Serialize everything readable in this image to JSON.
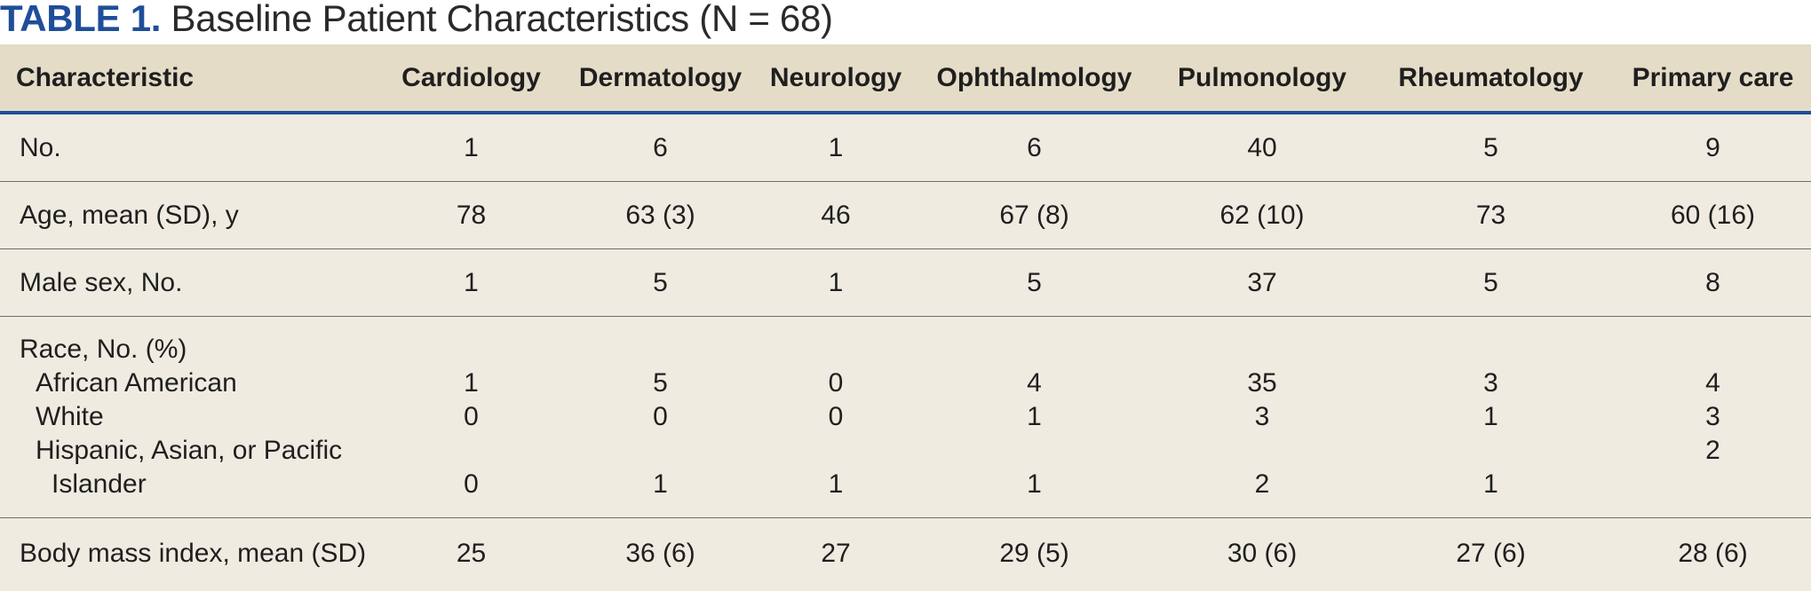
{
  "title": {
    "label": "TABLE 1.",
    "text": " Baseline Patient Characteristics (N = 68)"
  },
  "columns": [
    "Characteristic",
    "Cardiology",
    "Dermatology",
    "Neurology",
    "Ophthalmology",
    "Pulmonology",
    "Rheumatology",
    "Primary care"
  ],
  "rows": {
    "no": {
      "label": "No.",
      "values": [
        "1",
        "6",
        "1",
        "6",
        "40",
        "5",
        "9"
      ]
    },
    "age": {
      "label": "Age, mean (SD), y",
      "values": [
        "78",
        "63 (3)",
        "46",
        "67 (8)",
        "62 (10)",
        "73",
        "60 (16)"
      ]
    },
    "male": {
      "label": "Male sex, No.",
      "values": [
        "1",
        "5",
        "1",
        "5",
        "37",
        "5",
        "8"
      ]
    },
    "race": {
      "label": "Race, No. (%)",
      "african_american": {
        "label": "African American",
        "values": [
          "1",
          "5",
          "0",
          "4",
          "35",
          "3",
          "4"
        ]
      },
      "white": {
        "label": "White",
        "values": [
          "0",
          "0",
          "0",
          "1",
          "3",
          "1",
          "3"
        ]
      },
      "hispanic": {
        "label_line1": "Hispanic, Asian, or Pacific",
        "label_line2": "Islander",
        "values": [
          "0",
          "1",
          "1",
          "1",
          "2",
          "1",
          "2"
        ]
      }
    },
    "bmi": {
      "label": "Body mass index, mean (SD)",
      "values": [
        "25",
        "36 (6)",
        "27",
        "29 (5)",
        "30 (6)",
        "27 (6)",
        "28 (6)"
      ]
    }
  }
}
